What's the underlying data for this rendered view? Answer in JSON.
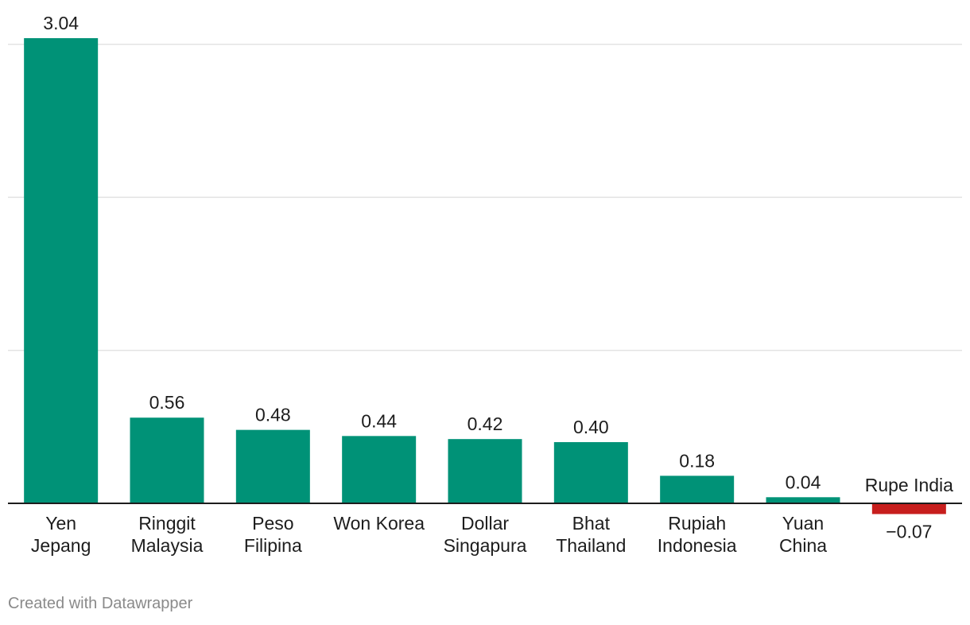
{
  "chart_data": {
    "type": "bar",
    "categories": [
      [
        "Yen",
        "Jepang"
      ],
      [
        "Ringgit",
        "Malaysia"
      ],
      [
        "Peso",
        "Filipina"
      ],
      [
        "Won Korea"
      ],
      [
        "Dollar",
        "Singapura"
      ],
      [
        "Bhat",
        "Thailand"
      ],
      [
        "Rupiah",
        "Indonesia"
      ],
      [
        "Yuan",
        "China"
      ],
      [
        "Rupe India"
      ]
    ],
    "values": [
      3.04,
      0.56,
      0.48,
      0.44,
      0.42,
      0.4,
      0.18,
      0.04,
      -0.07
    ],
    "value_labels": [
      "3.04",
      "0.56",
      "0.48",
      "0.44",
      "0.42",
      "0.40",
      "0.18",
      "0.04",
      "−0.07"
    ],
    "ylim": [
      -0.07,
      3.04
    ],
    "grid": true,
    "colors": {
      "positive": "#009277",
      "negative": "#c71e1d",
      "grid": "#e3e3e3",
      "baseline": "#1d1d1d"
    }
  },
  "footer": {
    "credit": "Created with Datawrapper"
  }
}
